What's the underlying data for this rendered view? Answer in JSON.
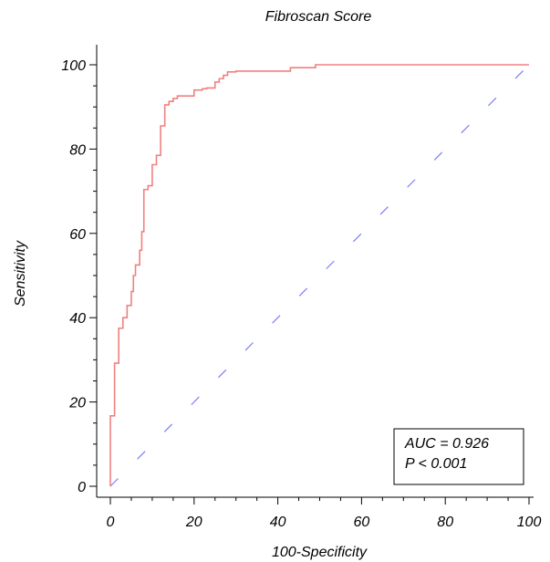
{
  "chart_data": {
    "type": "line",
    "title": "Fibroscan Score",
    "xlabel": "100-Specificity",
    "ylabel": "Sensitivity",
    "xlim": [
      0,
      100
    ],
    "ylim": [
      0,
      100
    ],
    "xticks": [
      0,
      20,
      40,
      60,
      80,
      100
    ],
    "yticks": [
      0,
      20,
      40,
      60,
      80,
      100
    ],
    "xtick_labels": [
      "0",
      "20",
      "40",
      "60",
      "80",
      "100"
    ],
    "ytick_labels": [
      "0",
      "20",
      "40",
      "60",
      "80",
      "100"
    ],
    "grid": false,
    "legend": "none",
    "series": [
      {
        "style": "step",
        "color": "#f08080",
        "x": [
          0,
          0,
          1,
          1,
          2,
          2,
          3,
          3,
          4,
          4,
          5,
          5,
          5.5,
          5.5,
          6,
          6,
          7,
          7,
          7.5,
          7.5,
          8,
          8,
          9,
          9,
          10,
          10,
          11,
          11,
          12,
          12,
          13,
          13,
          14,
          14,
          15,
          15,
          16,
          16,
          17,
          17,
          18,
          18,
          20,
          20,
          22,
          22,
          23,
          23,
          25,
          25,
          26,
          26,
          27,
          27,
          28,
          28,
          30,
          30,
          43,
          43,
          49,
          49,
          100
        ],
        "y": [
          0,
          16.7,
          16.7,
          29.2,
          29.2,
          37.5,
          37.5,
          40,
          40,
          42.9,
          42.9,
          46.2,
          46.2,
          50,
          50,
          52.5,
          52.5,
          56,
          56,
          60.4,
          60.4,
          70.4,
          70.4,
          71.3,
          71.3,
          76.3,
          76.3,
          78.5,
          78.5,
          85.5,
          85.5,
          90.5,
          90.5,
          91.3,
          91.3,
          92,
          92,
          92.6,
          92.6,
          92.6,
          92.6,
          92.6,
          92.6,
          94,
          94,
          94.3,
          94.3,
          94.5,
          94.5,
          95.9,
          95.9,
          96.7,
          96.7,
          97.5,
          97.5,
          98.3,
          98.3,
          98.5,
          98.5,
          99.3,
          99.3,
          100,
          100
        ]
      },
      {
        "style": "dashed-diagonal",
        "color": "#7b7bff",
        "x": [
          0,
          100
        ],
        "y": [
          0,
          100
        ]
      }
    ],
    "annotations": [
      {
        "text": "AUC = 0.926"
      },
      {
        "text": "P < 0.001"
      }
    ]
  }
}
